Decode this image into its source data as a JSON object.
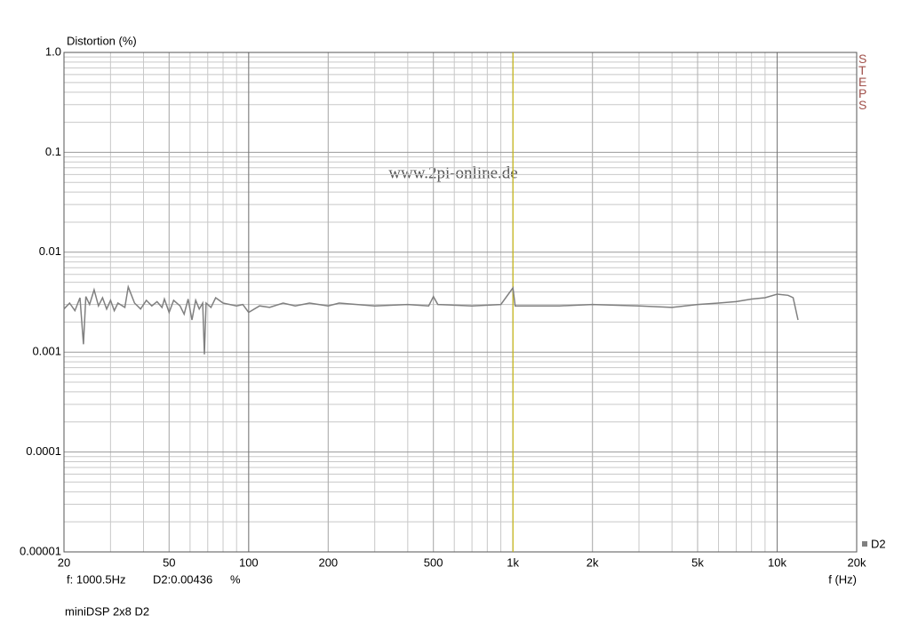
{
  "chart_data": {
    "type": "line",
    "title": "Distortion (%)",
    "x_label": "f (Hz)",
    "x": [
      20,
      21,
      22,
      23,
      23.7,
      24.2,
      25,
      26,
      27,
      28,
      29,
      30,
      31,
      32,
      34,
      35,
      37,
      39,
      41,
      43,
      45,
      47,
      48,
      50,
      52,
      55,
      57,
      59,
      61,
      63,
      65,
      67,
      68,
      69,
      72,
      75,
      80,
      90,
      95,
      100,
      110,
      120,
      135,
      150,
      170,
      200,
      220,
      300,
      400,
      480,
      500,
      520,
      700,
      900,
      1000,
      1020,
      1500,
      2000,
      3000,
      4000,
      5000,
      6000,
      7000,
      8000,
      9000,
      10000,
      11000,
      11500,
      12000
    ],
    "series": [
      {
        "name": "D2",
        "color": "#808080",
        "values": [
          0.0027,
          0.0031,
          0.0026,
          0.0035,
          0.0012,
          0.0036,
          0.003,
          0.0042,
          0.0029,
          0.0035,
          0.0027,
          0.0033,
          0.0026,
          0.0031,
          0.0028,
          0.0045,
          0.0031,
          0.0027,
          0.0033,
          0.0029,
          0.0032,
          0.0028,
          0.0034,
          0.0025,
          0.0033,
          0.0029,
          0.0024,
          0.0034,
          0.0021,
          0.0033,
          0.0027,
          0.0031,
          0.00095,
          0.0031,
          0.0028,
          0.0035,
          0.0031,
          0.0029,
          0.003,
          0.0025,
          0.0029,
          0.0028,
          0.0031,
          0.0029,
          0.0031,
          0.0029,
          0.0031,
          0.0029,
          0.003,
          0.0029,
          0.0036,
          0.003,
          0.0029,
          0.003,
          0.0044,
          0.0029,
          0.0029,
          0.003,
          0.0029,
          0.0028,
          0.003,
          0.0031,
          0.0032,
          0.0034,
          0.0035,
          0.0038,
          0.0037,
          0.0035,
          0.0021
        ]
      }
    ],
    "xlim": [
      20,
      20000
    ],
    "ylim": [
      1e-05,
      1
    ],
    "xlog": true,
    "ylog": true,
    "grid": true,
    "xticks": [
      20,
      50,
      100,
      200,
      500,
      {
        "value": 1000,
        "label": "1k"
      },
      {
        "value": 2000,
        "label": "2k"
      },
      {
        "value": 5000,
        "label": "5k"
      },
      {
        "value": 10000,
        "label": "10k"
      },
      {
        "value": 20000,
        "label": "20k"
      }
    ],
    "yticks": [
      {
        "value": 1,
        "label": "1.0"
      },
      0.1,
      0.01,
      0.001,
      0.0001,
      1e-05
    ],
    "cursor": {
      "value": 1000.5,
      "label": "f: 1000.5Hz",
      "color": "#d4c000"
    },
    "readout": "D2:0.00436",
    "readout_unit": "%",
    "watermark": "www.2pi-online.de",
    "side_label": "STEPS",
    "footer": "miniDSP 2x8 D2",
    "legend": "bottom-right"
  }
}
